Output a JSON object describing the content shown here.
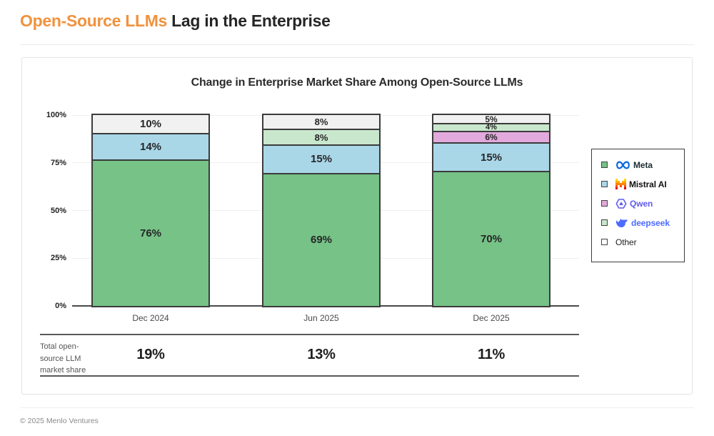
{
  "page": {
    "title_highlight": "Open-Source LLMs",
    "title_rest": " Lag in the Enterprise",
    "footer": "© 2025 Menlo Ventures"
  },
  "chart_data": {
    "type": "bar",
    "stacked": true,
    "title": "Change in Enterprise Market Share Among Open-Source LLMs",
    "categories": [
      "Dec 2024",
      "Jun 2025",
      "Dec 2025"
    ],
    "series": [
      {
        "name": "Meta",
        "color": "#76C287",
        "values": [
          76,
          69,
          70
        ]
      },
      {
        "name": "Mistral AI",
        "color": "#A9D7E8",
        "values": [
          14,
          15,
          15
        ]
      },
      {
        "name": "Qwen",
        "color": "#E2A9DC",
        "values": [
          0,
          0,
          6
        ]
      },
      {
        "name": "deepseek",
        "color": "#C9E7CD",
        "values": [
          0,
          8,
          4
        ]
      },
      {
        "name": "Other",
        "color": "#F1F1F1",
        "values": [
          10,
          8,
          5
        ]
      }
    ],
    "stack_order_top_to_bottom": [
      "Other",
      "deepseek",
      "Qwen",
      "Mistral AI",
      "Meta"
    ],
    "xlabel": "",
    "ylabel": "",
    "ylim": [
      0,
      100
    ],
    "y_ticks": [
      "0%",
      "25%",
      "50%",
      "75%",
      "100%"
    ],
    "grid": true,
    "legend_position": "right",
    "totals_row": {
      "label_lines": [
        "Total open-",
        "source LLM",
        "market share"
      ],
      "values": [
        "19%",
        "13%",
        "11%"
      ]
    }
  },
  "legend": {
    "items": [
      {
        "label": "Meta",
        "swatch": "#76C287",
        "icon": "meta-logo-icon",
        "label_color": "#1C2B33",
        "weight": 600
      },
      {
        "label": "Mistral AI",
        "swatch": "#A9D7E8",
        "icon": "mistral-logo-icon",
        "label_color": "#111111",
        "weight": 700
      },
      {
        "label": "Qwen",
        "swatch": "#E2A9DC",
        "icon": "qwen-logo-icon",
        "label_color": "#615CED",
        "weight": 700
      },
      {
        "label": "deepseek",
        "swatch": "#C9E7CD",
        "icon": "deepseek-logo-icon",
        "label_color": "#4D6BFE",
        "weight": 700
      },
      {
        "label": "Other",
        "swatch": "#FFFFFF",
        "icon": "",
        "label_color": "#222222",
        "weight": 400
      }
    ]
  },
  "colors": {
    "accent_orange": "#F0923E",
    "segment_border": "#3B3B3B",
    "axis": "#4A4A4A"
  }
}
